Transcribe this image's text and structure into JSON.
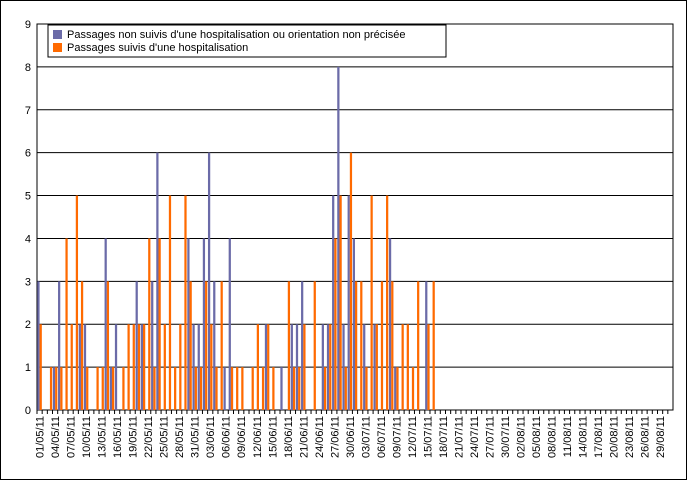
{
  "chart_data": {
    "type": "bar",
    "categories": [
      "01/05/11",
      null,
      null,
      "04/05/11",
      null,
      null,
      "07/05/11",
      null,
      null,
      "10/05/11",
      null,
      null,
      "13/05/11",
      null,
      null,
      "16/05/11",
      null,
      null,
      "19/05/11",
      null,
      null,
      "22/05/11",
      null,
      null,
      "25/05/11",
      null,
      null,
      "28/05/11",
      null,
      null,
      "31/05/11",
      null,
      null,
      "03/06/11",
      null,
      null,
      "06/06/11",
      null,
      null,
      "09/06/11",
      null,
      null,
      "12/06/11",
      null,
      null,
      "15/06/11",
      null,
      null,
      "18/06/11",
      null,
      null,
      "21/06/11",
      null,
      null,
      "24/06/11",
      null,
      null,
      "27/06/11",
      null,
      null,
      "30/06/11",
      null,
      null,
      "03/07/11",
      null,
      null,
      "06/07/11",
      null,
      null,
      "09/07/11",
      null,
      null,
      "12/07/11",
      null,
      null,
      "15/07/11",
      null,
      null,
      "18/07/11",
      null,
      null,
      "21/07/11",
      null,
      null,
      "24/07/11",
      null,
      null,
      "27/07/11",
      null,
      null,
      "30/07/11",
      null,
      null,
      "02/08/11",
      null,
      null,
      "05/08/11",
      null,
      null,
      "08/08/11",
      null,
      null,
      "11/08/11",
      null,
      null,
      "14/08/11",
      null,
      null,
      "17/08/11",
      null,
      null,
      "20/08/11",
      null,
      null,
      "23/08/11",
      null,
      null,
      "26/08/11",
      null,
      null,
      "29/08/11",
      null,
      null
    ],
    "series": [
      {
        "name": "Passages non suivis d'une hospitalisation ou orientation non précisée",
        "color": "#6b6ba8",
        "values": [
          3,
          0,
          0,
          1,
          3,
          0,
          0,
          0,
          2,
          2,
          0,
          0,
          0,
          4,
          1,
          2,
          0,
          0,
          0,
          3,
          2,
          0,
          3,
          6,
          0,
          0,
          0,
          0,
          0,
          4,
          2,
          2,
          4,
          6,
          3,
          0,
          1,
          4,
          0,
          0,
          0,
          0,
          0,
          0,
          2,
          0,
          0,
          1,
          0,
          2,
          2,
          3,
          0,
          0,
          0,
          2,
          2,
          5,
          8,
          2,
          5,
          4,
          0,
          2,
          0,
          2,
          0,
          0,
          4,
          1,
          0,
          0,
          0,
          0,
          0,
          3,
          0,
          0,
          0,
          0,
          0,
          0,
          0,
          0,
          0,
          0,
          0,
          0,
          0,
          0,
          0,
          0,
          0,
          0,
          0,
          0,
          0,
          0,
          0,
          0,
          0,
          0,
          0,
          0,
          0,
          0,
          0,
          0,
          0,
          0,
          0,
          0,
          0,
          0,
          0,
          0,
          0,
          0,
          0,
          0,
          0,
          0,
          0
        ]
      },
      {
        "name": "Passages suivis d'une hospitalisation",
        "color": "#ff6a00",
        "values": [
          2,
          0,
          1,
          1,
          1,
          4,
          2,
          5,
          3,
          1,
          0,
          1,
          1,
          3,
          1,
          0,
          1,
          2,
          2,
          2,
          2,
          4,
          1,
          4,
          2,
          5,
          1,
          2,
          5,
          3,
          1,
          1,
          3,
          2,
          1,
          3,
          0,
          1,
          1,
          1,
          0,
          1,
          2,
          1,
          2,
          1,
          0,
          0,
          3,
          1,
          1,
          2,
          0,
          3,
          0,
          1,
          2,
          4,
          5,
          1,
          6,
          3,
          3,
          1,
          5,
          2,
          3,
          5,
          3,
          1,
          2,
          2,
          1,
          3,
          0,
          2,
          3,
          0,
          0,
          0,
          0,
          0,
          0,
          0,
          0,
          0,
          0,
          0,
          0,
          0,
          0,
          0,
          0,
          0,
          0,
          0,
          0,
          0,
          0,
          0,
          0,
          0,
          0,
          0,
          0,
          0,
          0,
          0,
          0,
          0,
          0,
          0,
          0,
          0,
          0,
          0,
          0,
          0,
          0,
          0,
          0,
          0,
          0
        ]
      }
    ],
    "ylim": [
      0,
      9
    ],
    "yticks": [
      0,
      1,
      2,
      3,
      4,
      5,
      6,
      7,
      8,
      9
    ],
    "grid": true,
    "legend": "top-left"
  }
}
